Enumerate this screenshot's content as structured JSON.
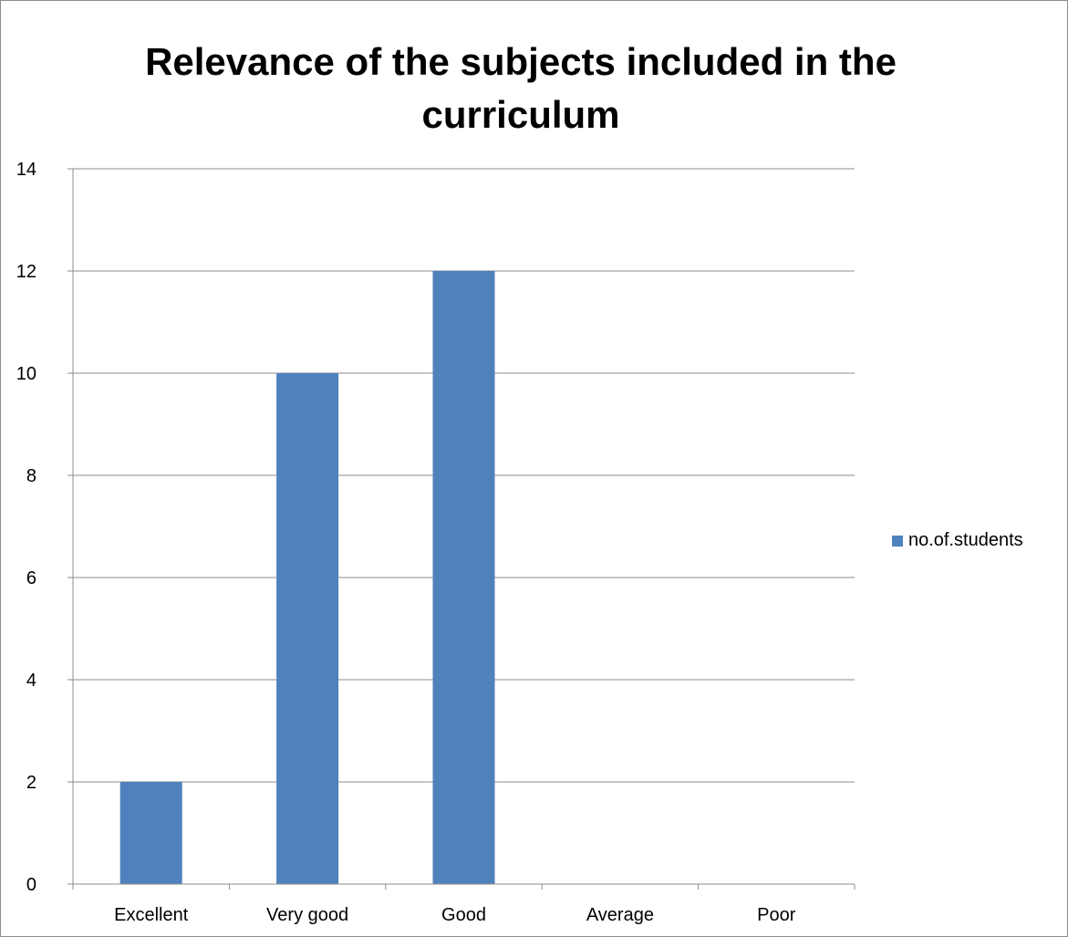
{
  "chart_data": {
    "type": "bar",
    "title": "Relevance of the subjects included in the curriculum",
    "categories": [
      "Excellent",
      "Very good",
      "Good",
      "Average",
      "Poor"
    ],
    "series": [
      {
        "name": "no.of.students",
        "values": [
          2,
          10,
          12,
          0,
          0
        ],
        "color": "#4f81bd"
      }
    ],
    "ylim": [
      0,
      14
    ],
    "yticks": [
      0,
      2,
      4,
      6,
      8,
      10,
      12,
      14
    ],
    "grid": true,
    "legend_position": "right"
  }
}
